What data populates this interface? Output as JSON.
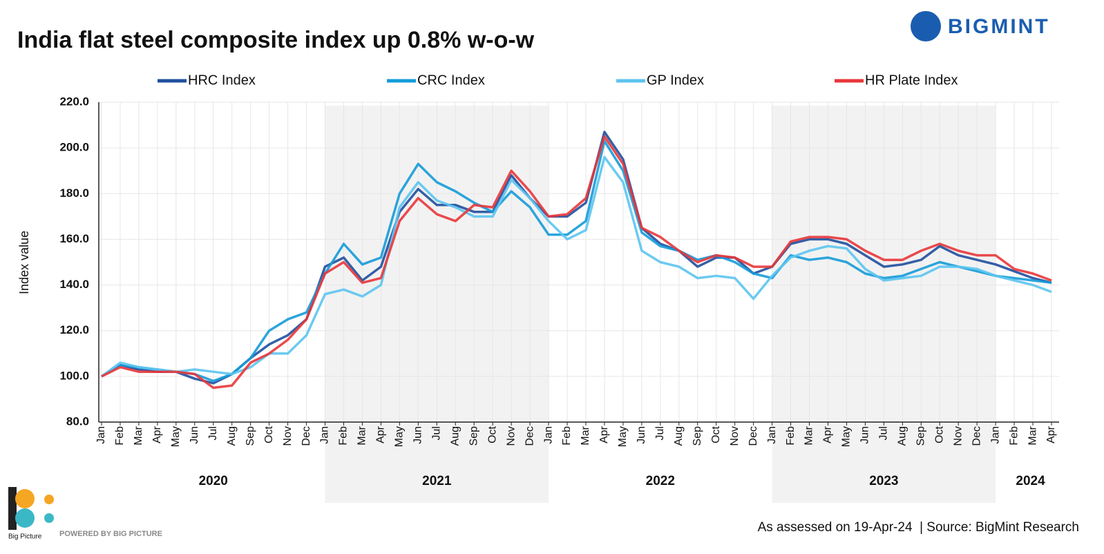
{
  "chart_data": {
    "type": "line",
    "title": "India flat steel composite index up 0.8% w-o-w",
    "y_label": "Index value",
    "brand": "BIGMINT",
    "footer": "As assessed on 19-Apr-24  | Source: BigMint Research",
    "powered_by": "POWERED BY BIG PICTURE",
    "logo_text": "Big Picture",
    "categories": [
      "Jan",
      "Feb",
      "Mar",
      "Apr",
      "May",
      "Jun",
      "Jul",
      "Aug",
      "Sep",
      "Oct",
      "Nov",
      "Dec",
      "Jan",
      "Feb",
      "Mar",
      "Apr",
      "May",
      "Jun",
      "Jul",
      "Aug",
      "Sep",
      "Oct",
      "Nov",
      "Dec",
      "Jan",
      "Feb",
      "Mar",
      "Apr",
      "May",
      "Jun",
      "Jul",
      "Aug",
      "Sep",
      "Oct",
      "Nov",
      "Dec",
      "Jan",
      "Feb",
      "Mar",
      "Apr",
      "May",
      "Jun",
      "Jul",
      "Aug",
      "Sep",
      "Oct",
      "Nov",
      "Dec",
      "Jan",
      "Feb",
      "Mar",
      "Apr"
    ],
    "years": [
      "2020",
      "2021",
      "2022",
      "2023",
      "2024"
    ],
    "series": [
      {
        "name": "HRC Index",
        "color": "#1f4f9e",
        "values": [
          100,
          105,
          103,
          102,
          102,
          99,
          97,
          101,
          108,
          114,
          118,
          125,
          148,
          152,
          142,
          148,
          172,
          182,
          175,
          175,
          172,
          172,
          188,
          178,
          170,
          170,
          176,
          207,
          195,
          165,
          158,
          155,
          148,
          152,
          152,
          145,
          148,
          158,
          160,
          160,
          158,
          153,
          148,
          149,
          151,
          157,
          153,
          151,
          149,
          146,
          143,
          141
        ]
      },
      {
        "name": "CRC Index",
        "color": "#159bd8",
        "values": [
          100,
          105,
          104,
          103,
          102,
          101,
          98,
          101,
          108,
          120,
          125,
          128,
          145,
          158,
          149,
          152,
          180,
          193,
          185,
          181,
          176,
          172,
          181,
          174,
          162,
          162,
          168,
          203,
          190,
          163,
          157,
          155,
          151,
          153,
          150,
          145,
          143,
          153,
          151,
          152,
          150,
          145,
          143,
          144,
          147,
          150,
          148,
          146,
          144,
          143,
          142,
          141
        ]
      },
      {
        "name": "GP Index",
        "color": "#5cc4ef",
        "values": [
          100,
          106,
          104,
          103,
          102,
          103,
          102,
          101,
          104,
          110,
          110,
          118,
          136,
          138,
          135,
          140,
          174,
          185,
          177,
          174,
          170,
          170,
          186,
          178,
          168,
          160,
          164,
          196,
          185,
          155,
          150,
          148,
          143,
          144,
          143,
          134,
          144,
          152,
          155,
          157,
          156,
          147,
          142,
          143,
          144,
          148,
          148,
          147,
          144,
          142,
          140,
          137
        ]
      },
      {
        "name": "HR Plate Index",
        "color": "#e8363a",
        "values": [
          100,
          104,
          102,
          102,
          102,
          101,
          95,
          96,
          106,
          110,
          116,
          125,
          145,
          150,
          141,
          143,
          168,
          178,
          171,
          168,
          175,
          174,
          190,
          181,
          170,
          171,
          178,
          205,
          193,
          165,
          161,
          155,
          150,
          153,
          152,
          148,
          148,
          159,
          161,
          161,
          160,
          155,
          151,
          151,
          155,
          158,
          155,
          153,
          153,
          147,
          145,
          142
        ]
      }
    ],
    "ylim": [
      80,
      220
    ],
    "yticks": [
      {
        "value": 80,
        "label": "80.0"
      },
      {
        "value": 100,
        "label": "100.0"
      },
      {
        "value": 120,
        "label": "120.0"
      },
      {
        "value": 140,
        "label": "140.0"
      },
      {
        "value": 160,
        "label": "160.0"
      },
      {
        "value": 180,
        "label": "180.0"
      },
      {
        "value": 200,
        "label": "200.0"
      },
      {
        "value": 220,
        "label": "220.0"
      }
    ],
    "grid": true
  }
}
